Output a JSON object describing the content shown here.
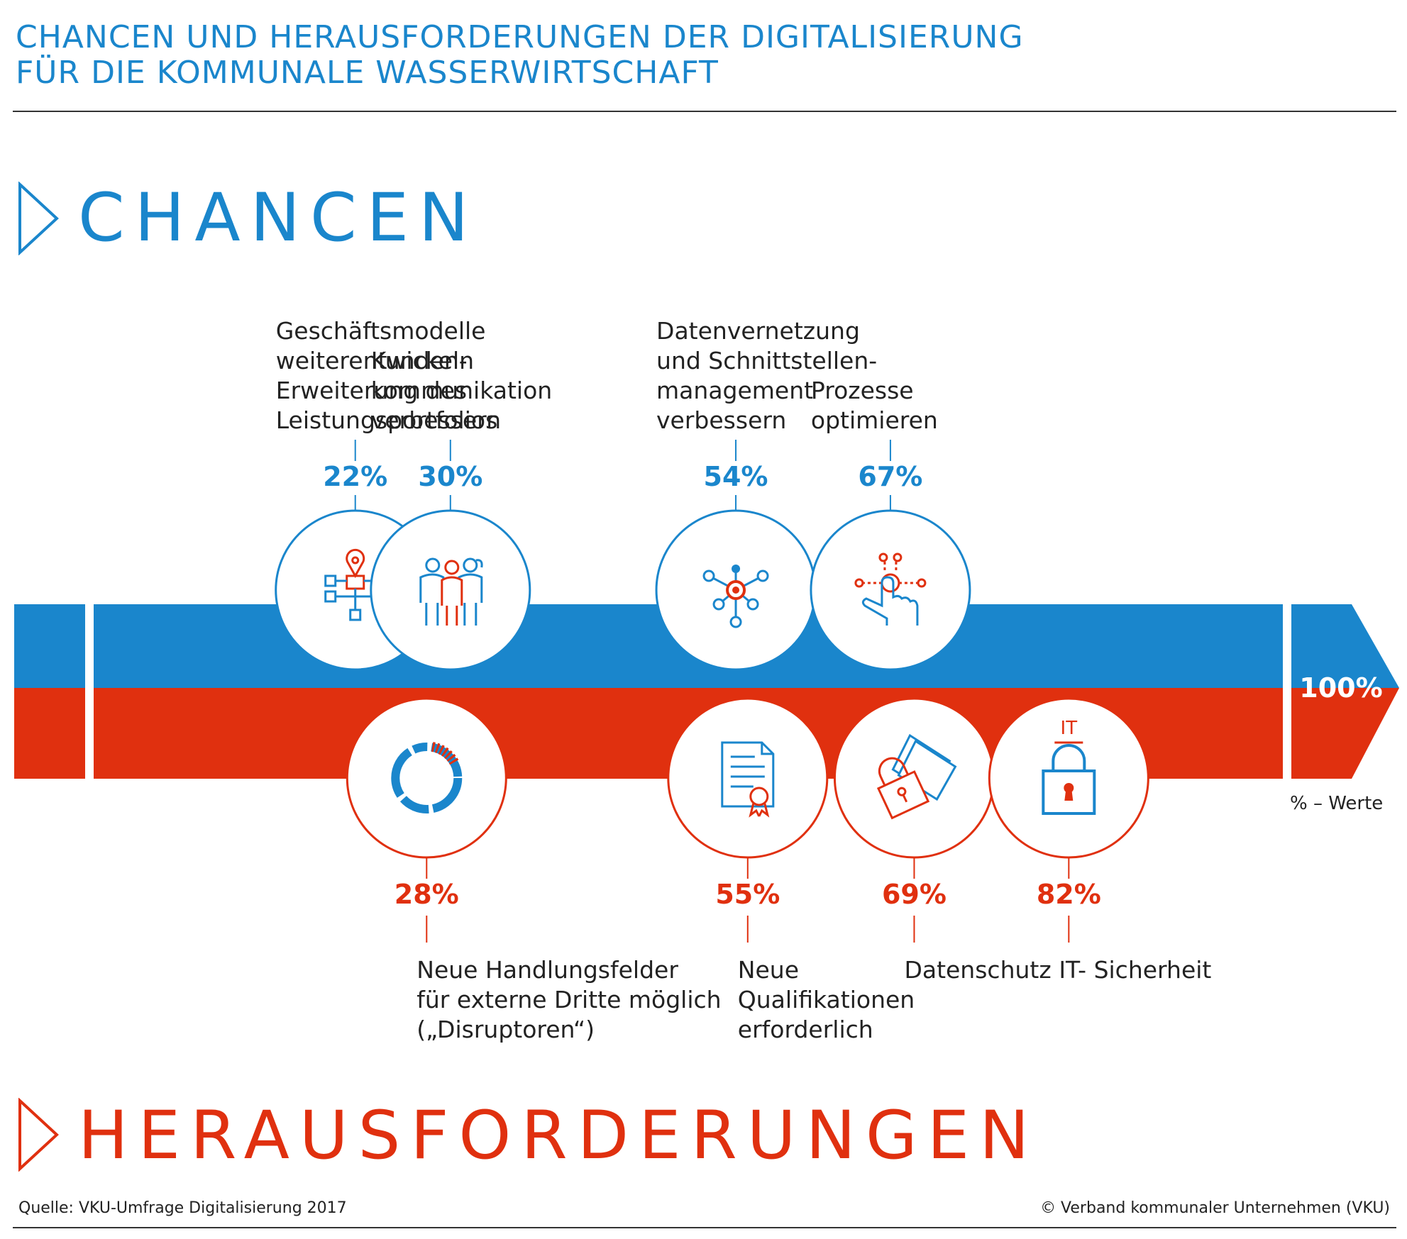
{
  "header": {
    "title_line1": "CHANCEN UND HERAUSFORDERUNGEN DER DIGITALISIERUNG",
    "title_line2": "FÜR DIE KOMMUNALE WASSERWIRTSCHAFT"
  },
  "sections": {
    "chancen": "CHANCEN",
    "herausforderungen": "HERAUSFORDERUNGEN"
  },
  "colors": {
    "blue": "#1a86cc",
    "red": "#e0300f",
    "dark": "#333333"
  },
  "chart_data": {
    "type": "bar",
    "unit_note": "% – Werte",
    "max_value": 100,
    "max_label": "100%",
    "series": [
      {
        "name": "CHANCEN",
        "items": [
          {
            "label": [
              "Geschäftsmodelle",
              "weiterentwickeln",
              "Erweiterung des",
              "Leistungsportfolios"
            ],
            "value": 22,
            "value_label": "22%",
            "icon": "business-model-icon"
          },
          {
            "label": [
              "Kunden-",
              "kommunikation",
              "verbessern"
            ],
            "value": 30,
            "value_label": "30%",
            "icon": "customers-icon"
          },
          {
            "label": [
              "Datenvernetzung",
              "und Schnittstellen-",
              "management",
              "verbessern"
            ],
            "value": 54,
            "value_label": "54%",
            "icon": "network-icon"
          },
          {
            "label": [
              "Prozesse",
              "optimieren"
            ],
            "value": 67,
            "value_label": "67%",
            "icon": "touch-process-icon"
          }
        ]
      },
      {
        "name": "HERAUSFORDERUNGEN",
        "items": [
          {
            "label": [
              "Neue Handlungsfelder",
              "für externe Dritte möglich",
              "(„Disruptoren“)"
            ],
            "value": 28,
            "value_label": "28%",
            "icon": "disruption-ring-icon"
          },
          {
            "label": [
              "Neue",
              "Qualifikationen",
              "erforderlich"
            ],
            "value": 55,
            "value_label": "55%",
            "icon": "certificate-icon"
          },
          {
            "label": [
              "Datenschutz"
            ],
            "value": 69,
            "value_label": "69%",
            "icon": "data-lock-icon"
          },
          {
            "label": [
              "IT- Sicherheit"
            ],
            "value": 82,
            "value_label": "82%",
            "icon": "it-lock-icon",
            "icon_text": "IT"
          }
        ]
      }
    ]
  },
  "footer": {
    "source": "Quelle: VKU-Umfrage Digitalisierung 2017",
    "copyright": "© Verband kommunaler Unternehmen (VKU)"
  }
}
